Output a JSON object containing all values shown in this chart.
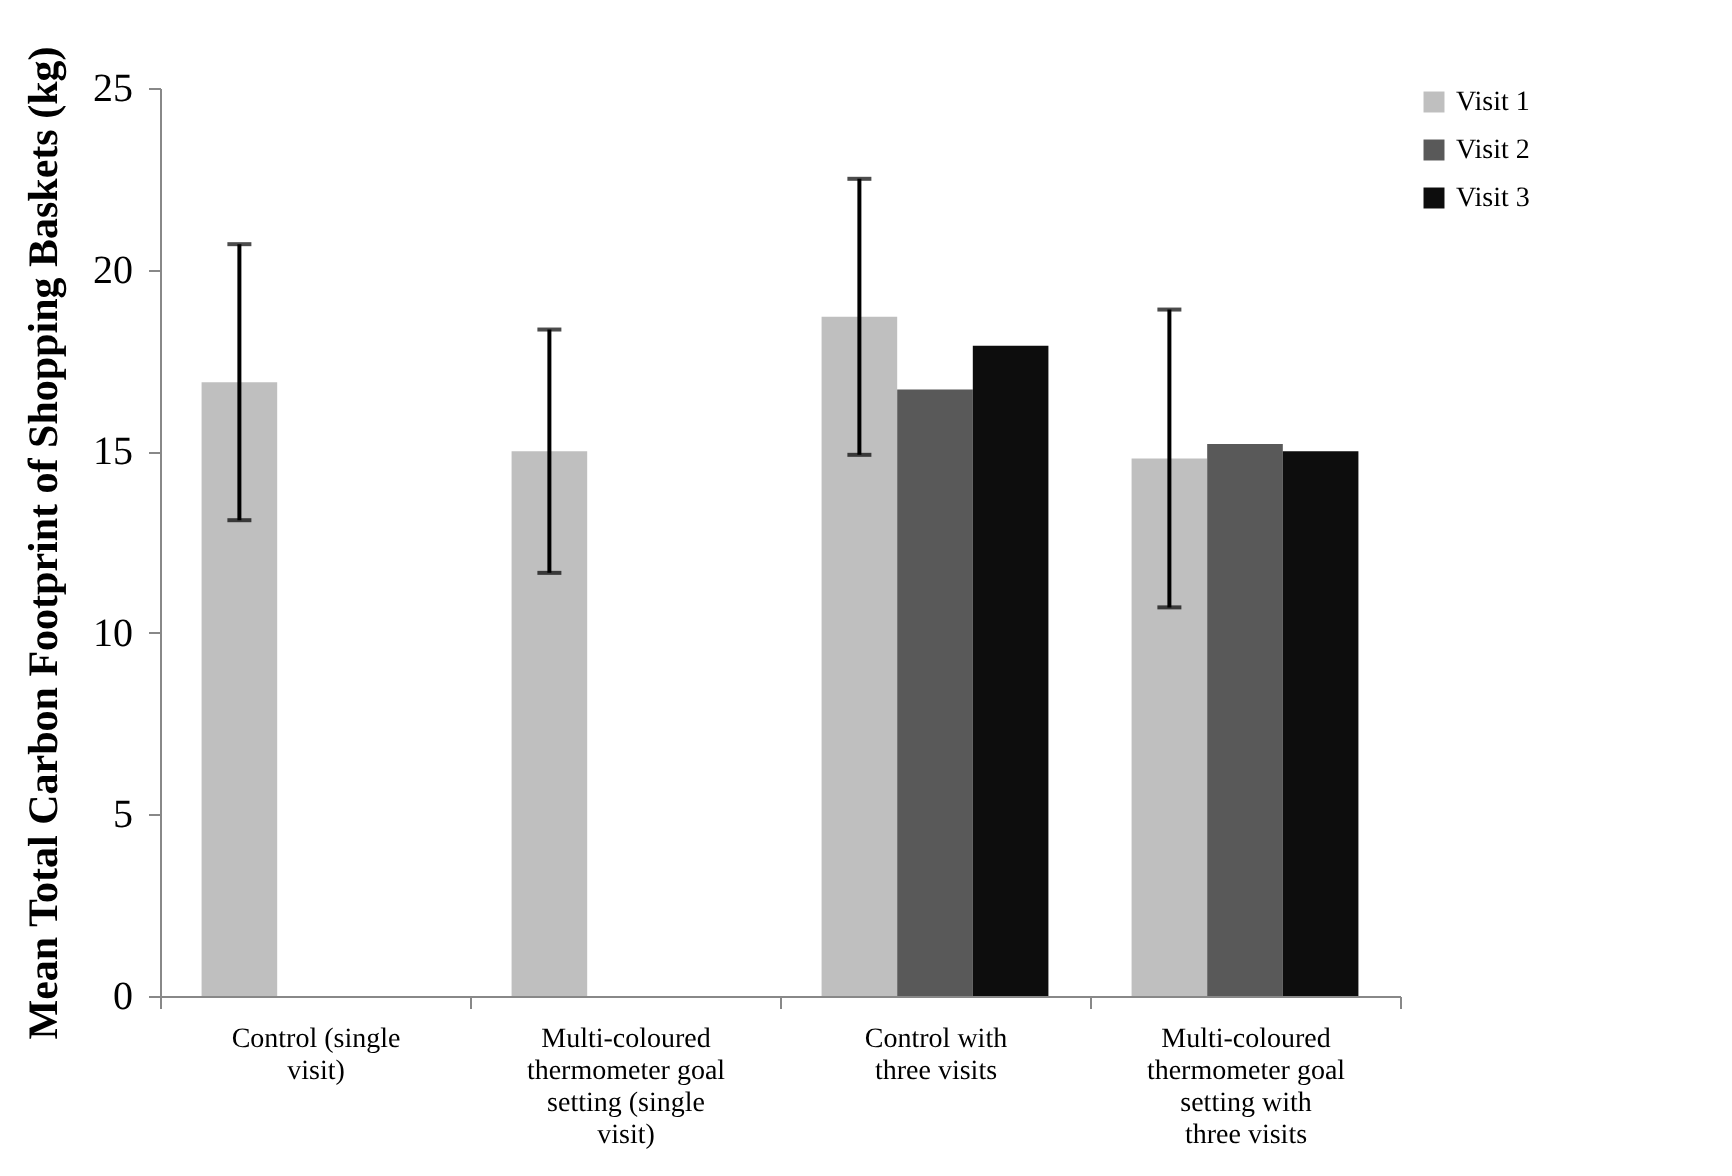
{
  "chart_data": {
    "type": "bar",
    "ylabel": "Mean Total Carbon Footprint of Shopping Baskets (kg)",
    "categories": [
      "Control (single visit)",
      "Multi-coloured thermometer goal setting (single visit)",
      "Control with three visits",
      "Multi-coloured thermometer goal setting with three visits"
    ],
    "series": [
      {
        "name": "Visit 1",
        "color": "#bfbfbf",
        "values": [
          16.9,
          15.0,
          18.7,
          14.8
        ],
        "errors": [
          3.8,
          3.35,
          3.8,
          4.1
        ]
      },
      {
        "name": "Visit 2",
        "color": "#595959",
        "values": [
          null,
          null,
          16.7,
          15.2
        ]
      },
      {
        "name": "Visit 3",
        "color": "#0d0d0d",
        "values": [
          null,
          null,
          17.9,
          15.0
        ]
      }
    ],
    "ylim": [
      0,
      25
    ],
    "yticks": [
      0,
      5,
      10,
      15,
      20,
      25
    ],
    "grid": false,
    "legend": "top right"
  }
}
